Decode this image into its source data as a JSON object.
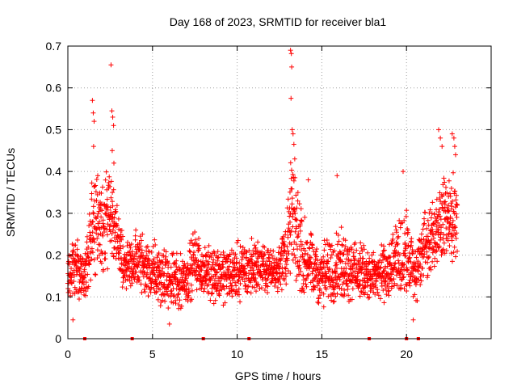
{
  "chart_data": {
    "type": "scatter",
    "title": "Day 168 of 2023, SRMTID for receiver bla1",
    "xlabel": "GPS time / hours",
    "ylabel": "SRMTID / TECUs",
    "xlim": [
      0,
      25
    ],
    "ylim": [
      0,
      0.7
    ],
    "xticks": [
      0,
      5,
      10,
      15,
      20
    ],
    "xtick_labels": [
      "0",
      "5",
      "10",
      "15",
      "20"
    ],
    "yticks": [
      0,
      0.1,
      0.2,
      0.3,
      0.4,
      0.5,
      0.6,
      0.7
    ],
    "ytick_labels": [
      "0",
      "0.1",
      "0.2",
      "0.3",
      "0.4",
      "0.5",
      "0.6",
      "0.7"
    ],
    "grid": true,
    "marker": "+",
    "series": [
      {
        "name": "bla1",
        "color": "#ff0000",
        "envelope": {
          "x": [
            0,
            0.5,
            1.0,
            1.5,
            2.0,
            2.5,
            3.0,
            3.5,
            4.0,
            5.0,
            6.0,
            7.0,
            7.5,
            8.0,
            9.0,
            10.0,
            11.0,
            12.0,
            12.5,
            13.0,
            13.2,
            13.5,
            14.0,
            14.5,
            15.0,
            16.0,
            17.0,
            18.0,
            19.0,
            19.5,
            20.0,
            20.5,
            21.0,
            21.5,
            22.0,
            22.5,
            23.0
          ],
          "low": [
            0.1,
            0.09,
            0.09,
            0.13,
            0.15,
            0.14,
            0.15,
            0.09,
            0.1,
            0.08,
            0.05,
            0.07,
            0.1,
            0.1,
            0.07,
            0.08,
            0.1,
            0.11,
            0.1,
            0.1,
            0.11,
            0.09,
            0.08,
            0.07,
            0.06,
            0.08,
            0.09,
            0.08,
            0.08,
            0.08,
            0.09,
            0.05,
            0.14,
            0.15,
            0.18,
            0.17,
            0.18
          ],
          "high": [
            0.2,
            0.26,
            0.2,
            0.42,
            0.4,
            0.45,
            0.3,
            0.24,
            0.28,
            0.25,
            0.22,
            0.22,
            0.28,
            0.22,
            0.24,
            0.24,
            0.25,
            0.22,
            0.24,
            0.35,
            0.5,
            0.4,
            0.3,
            0.26,
            0.24,
            0.28,
            0.24,
            0.22,
            0.24,
            0.3,
            0.32,
            0.24,
            0.3,
            0.34,
            0.38,
            0.42,
            0.4
          ]
        },
        "spikes": [
          {
            "x": 1.45,
            "y": 0.57
          },
          {
            "x": 1.5,
            "y": 0.54
          },
          {
            "x": 1.55,
            "y": 0.52
          },
          {
            "x": 1.52,
            "y": 0.46
          },
          {
            "x": 2.55,
            "y": 0.655
          },
          {
            "x": 2.6,
            "y": 0.545
          },
          {
            "x": 2.65,
            "y": 0.53
          },
          {
            "x": 2.7,
            "y": 0.51
          },
          {
            "x": 2.62,
            "y": 0.45
          },
          {
            "x": 2.72,
            "y": 0.42
          },
          {
            "x": 13.15,
            "y": 0.69
          },
          {
            "x": 13.2,
            "y": 0.682
          },
          {
            "x": 13.22,
            "y": 0.65
          },
          {
            "x": 13.18,
            "y": 0.575
          },
          {
            "x": 13.25,
            "y": 0.5
          },
          {
            "x": 13.3,
            "y": 0.49
          },
          {
            "x": 13.35,
            "y": 0.465
          },
          {
            "x": 13.4,
            "y": 0.43
          },
          {
            "x": 14.2,
            "y": 0.38
          },
          {
            "x": 15.9,
            "y": 0.39
          },
          {
            "x": 19.8,
            "y": 0.4
          },
          {
            "x": 21.9,
            "y": 0.5
          },
          {
            "x": 22.0,
            "y": 0.48
          },
          {
            "x": 22.1,
            "y": 0.46
          },
          {
            "x": 22.7,
            "y": 0.49
          },
          {
            "x": 22.8,
            "y": 0.48
          },
          {
            "x": 22.85,
            "y": 0.46
          },
          {
            "x": 22.9,
            "y": 0.44
          },
          {
            "x": 0.3,
            "y": 0.045
          },
          {
            "x": 6.0,
            "y": 0.035
          },
          {
            "x": 20.4,
            "y": 0.045
          }
        ],
        "zero_marks": [
          1.0,
          3.8,
          8.0,
          10.7,
          17.8,
          20.0,
          20.7
        ]
      }
    ]
  }
}
